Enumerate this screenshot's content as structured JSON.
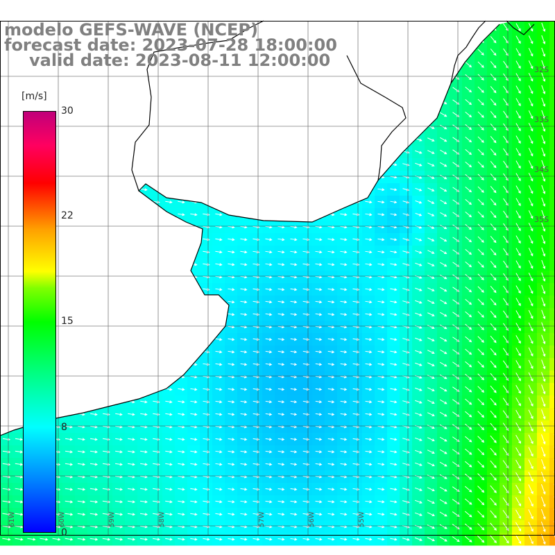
{
  "header": {
    "model": "modelo GEFS-WAVE (NCEP)",
    "forecast": "forecast date: 2023-07-28 18:00:00",
    "valid": "valid date: 2023-08-11 12:00:00"
  },
  "colorbar": {
    "unit": "[m/s]",
    "ticks": [
      "30",
      "22",
      "15",
      "8",
      "0"
    ],
    "tick_values": [
      30,
      22,
      15,
      8,
      0
    ],
    "min": 0,
    "max": 30
  },
  "lat_labels": [
    "32S",
    "33S",
    "34S",
    "35S"
  ],
  "lon_labels": [
    "61W",
    "60W",
    "59W",
    "58W",
    "57W",
    "56W",
    "55W"
  ],
  "wind_field": {
    "units": "m/s",
    "variable": "wind speed and direction",
    "arrow_color": "#ffffff"
  }
}
